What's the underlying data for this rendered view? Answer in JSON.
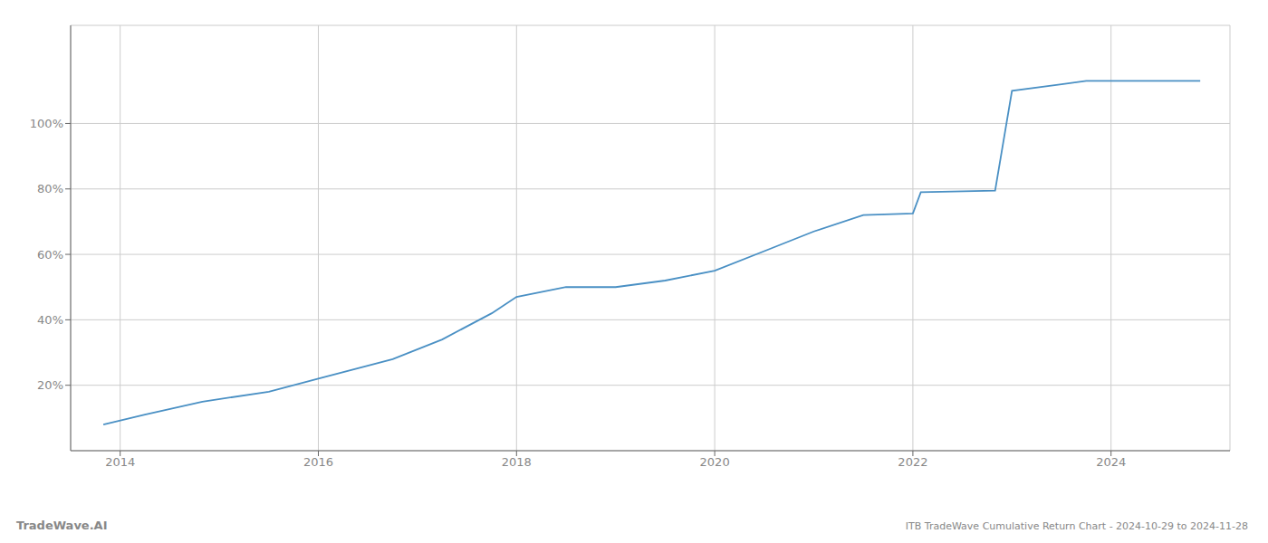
{
  "chart_data": {
    "type": "line",
    "title": "ITB TradeWave Cumulative Return Chart - 2024-10-29 to 2024-11-28",
    "annotations": [
      "TradeWave.AI"
    ],
    "x": [
      2013.83,
      2014.25,
      2014.83,
      2015.5,
      2016.0,
      2016.75,
      2017.25,
      2017.75,
      2018.0,
      2018.5,
      2019.0,
      2019.5,
      2020.0,
      2020.5,
      2021.0,
      2021.5,
      2022.0,
      2022.08,
      2022.83,
      2023.0,
      2023.5,
      2023.75,
      2024.0,
      2024.5,
      2024.9
    ],
    "values": [
      8.0,
      11.0,
      15.0,
      18.0,
      22.0,
      28.0,
      34.0,
      42.0,
      47.0,
      50.0,
      50.0,
      52.0,
      55.0,
      61.0,
      67.0,
      72.0,
      72.5,
      79.0,
      79.5,
      110.0,
      112.0,
      113.0,
      113.0,
      113.0,
      113.0
    ],
    "color": "#4a90c4",
    "xlim": [
      2013.5,
      2025.2
    ],
    "ylim": [
      0,
      130
    ],
    "xticks": [
      2014,
      2016,
      2018,
      2020,
      2022,
      2024
    ],
    "yticks": [
      {
        "value": 20,
        "label": "20%"
      },
      {
        "value": 40,
        "label": "40%"
      },
      {
        "value": 60,
        "label": "60%"
      },
      {
        "value": 80,
        "label": "80%"
      },
      {
        "value": 100,
        "label": "100%"
      }
    ],
    "grid": true
  }
}
